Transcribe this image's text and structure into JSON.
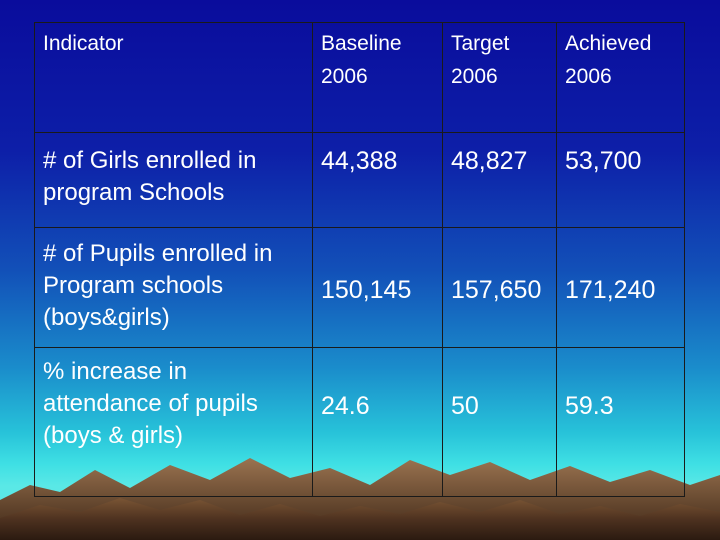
{
  "table": {
    "headers": [
      {
        "line1": "Indicator",
        "line2": ""
      },
      {
        "line1": "Baseline",
        "line2": "2006"
      },
      {
        "line1": "Target",
        "line2": "2006"
      },
      {
        "line1": "Achieved",
        "line2": "2006"
      }
    ],
    "rows": [
      {
        "label": "# of Girls enrolled in program Schools",
        "baseline": "44,388",
        "target": "48,827",
        "achieved": "53,700"
      },
      {
        "label": "# of Pupils enrolled in Program schools (boys&girls)",
        "baseline": "150,145",
        "target": "157,650",
        "achieved": "171,240"
      },
      {
        "label": "% increase in attendance of pupils (boys & girls)",
        "baseline": "24.6",
        "target": "50",
        "achieved": "59.3"
      }
    ]
  },
  "colors": {
    "background_top": "#0a0c9c",
    "background_bottom": "#5ae8e6",
    "text": "#ffffff",
    "mountains": "#5a3b22"
  }
}
